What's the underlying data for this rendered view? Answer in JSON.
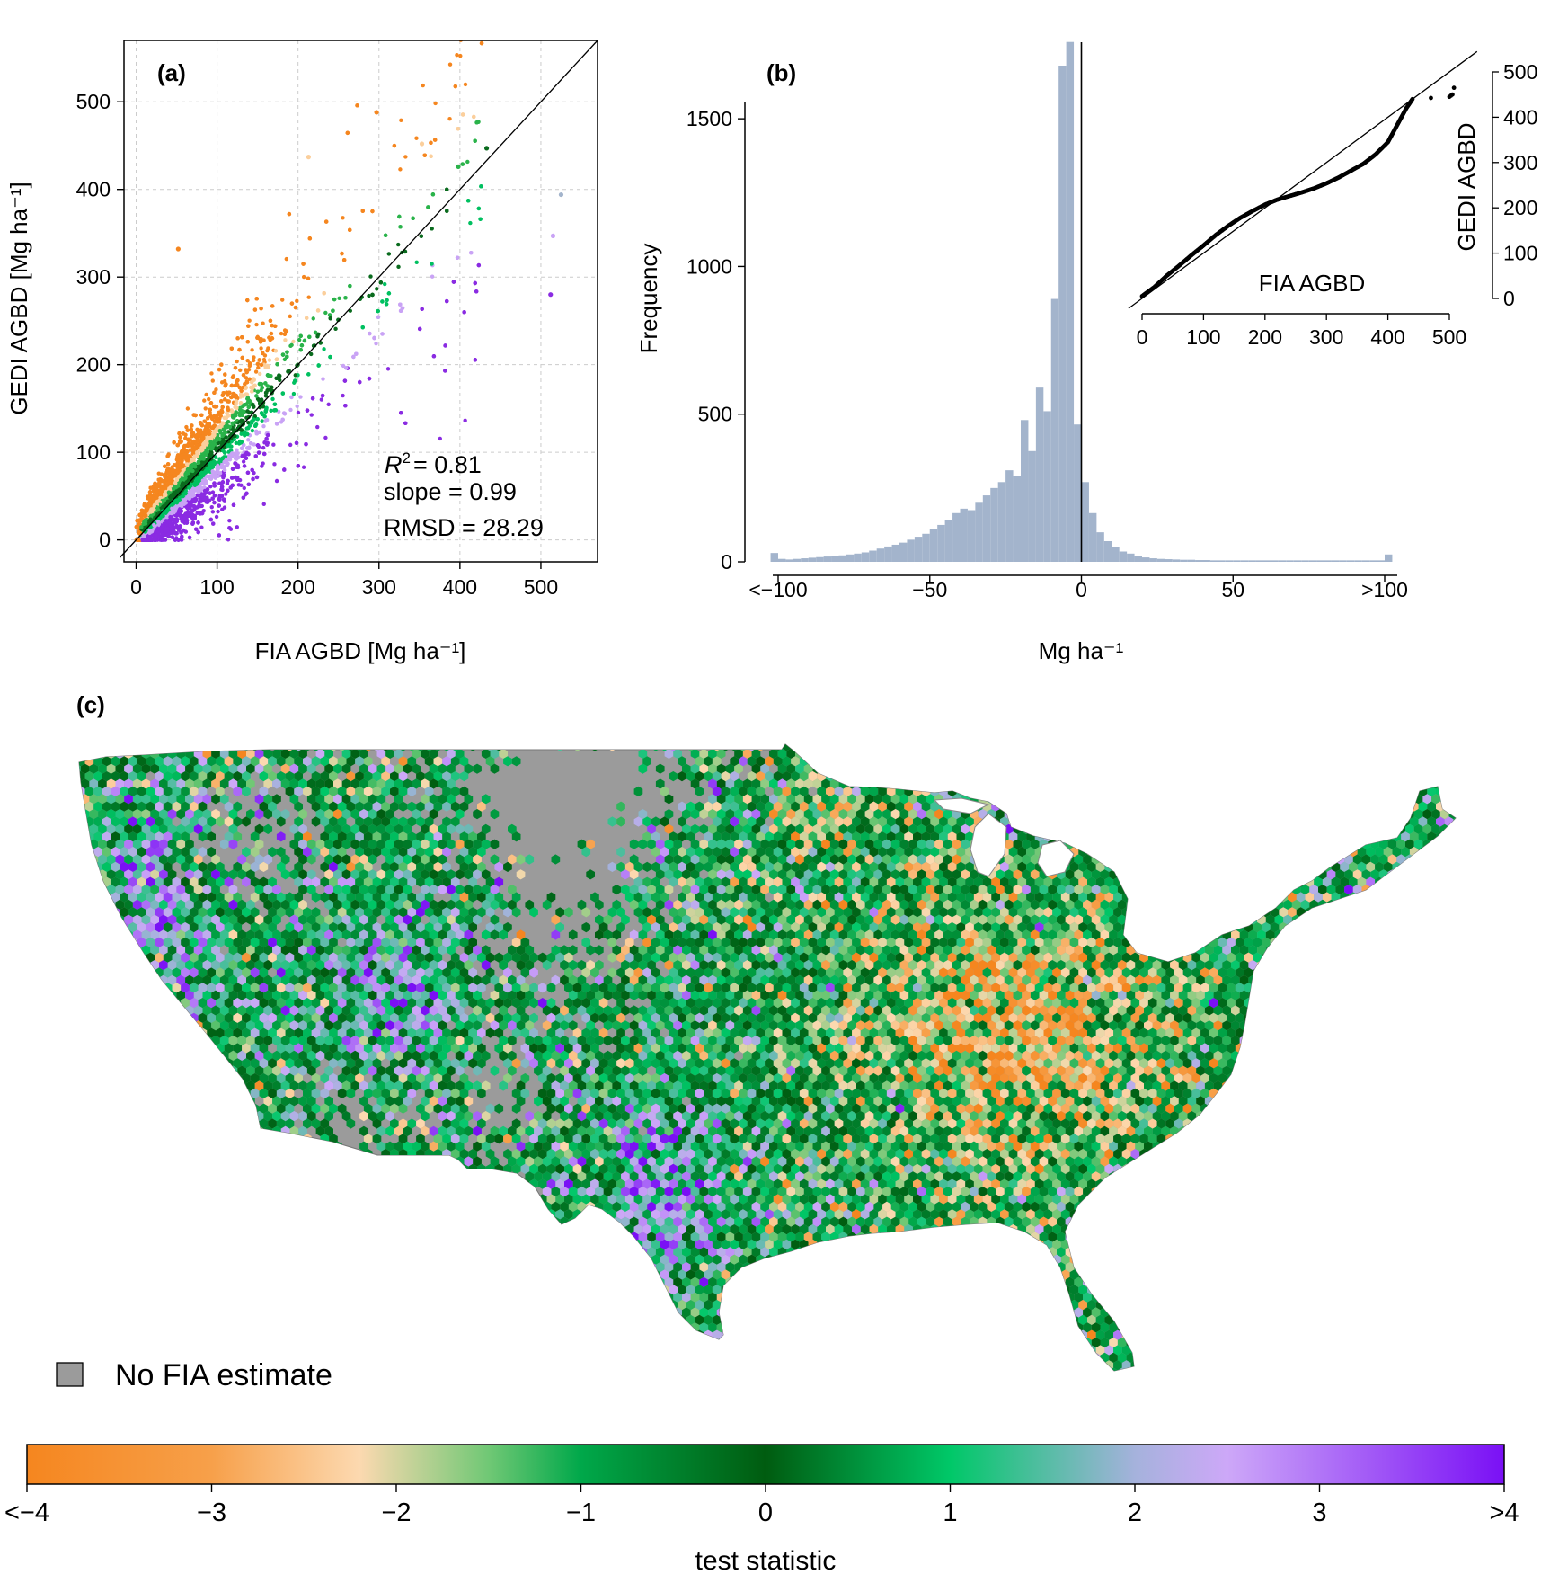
{
  "colors": {
    "orange": "#f5861f",
    "light_orange": "#fbcf9c",
    "green": "#2ab34a",
    "dark_green": "#0a6b1e",
    "bright_green": "#00c060",
    "lavender": "#c9a3f5",
    "purple": "#8a2be2",
    "hist_fill": "#a3b4cc",
    "no_data_gray": "#9b9b9b"
  },
  "chart_data": [
    {
      "type": "scatter",
      "panel_label": "(a)",
      "xlabel": "FIA AGBD [Mg ha⁻¹]",
      "ylabel": "GEDI AGBD [Mg ha⁻¹]",
      "xlim": [
        -15,
        570
      ],
      "ylim": [
        -25,
        570
      ],
      "xticks": [
        "0",
        "100",
        "200",
        "300",
        "400",
        "500"
      ],
      "yticks": [
        "0",
        "100",
        "200",
        "300",
        "400",
        "500"
      ],
      "grid": true,
      "reference_line": "1:1",
      "stats": {
        "r2_label": "R",
        "r2_sup": "2",
        "r2_value": "= 0.81",
        "slope": "slope = 0.99",
        "rmsd": "RMSD = 28.29"
      },
      "outlier_points": [
        {
          "x": 297,
          "y": 488,
          "class": "orange"
        },
        {
          "x": 213,
          "y": 437,
          "class": "light_orange"
        },
        {
          "x": 353,
          "y": 452,
          "class": "light_orange"
        },
        {
          "x": 52,
          "y": 332,
          "class": "orange"
        },
        {
          "x": 525,
          "y": 394,
          "class": "hist_fill"
        },
        {
          "x": 515,
          "y": 347,
          "class": "lavender"
        },
        {
          "x": 512,
          "y": 280,
          "class": "purple"
        },
        {
          "x": 433,
          "y": 447,
          "class": "dark_green"
        },
        {
          "x": 398,
          "y": 426,
          "class": "green"
        }
      ],
      "point_cloud": "test statistic classes relative to the 1:1 line: orange above, green near, purple below"
    },
    {
      "type": "bar",
      "panel_label": "(b)",
      "xlabel": "Mg ha⁻¹",
      "ylabel": "Frequency",
      "xticks": [
        "<−100",
        "−50",
        "0",
        "50",
        ">100"
      ],
      "yticks": [
        "0",
        "500",
        "1000",
        "1500"
      ],
      "ylim": [
        0,
        1750
      ],
      "bin_width": 2.5,
      "bin_start": -102.5,
      "counts": [
        30,
        10,
        8,
        10,
        12,
        14,
        16,
        18,
        20,
        22,
        25,
        28,
        32,
        38,
        45,
        52,
        58,
        65,
        75,
        85,
        95,
        110,
        125,
        140,
        165,
        180,
        175,
        200,
        225,
        250,
        270,
        310,
        290,
        480,
        375,
        590,
        510,
        890,
        1680,
        1760,
        465,
        270,
        165,
        100,
        70,
        50,
        35,
        28,
        20,
        15,
        12,
        10,
        9,
        8,
        7,
        7,
        6,
        6,
        5,
        5,
        5,
        5,
        5,
        5,
        5,
        5,
        5,
        5,
        5,
        5,
        5,
        5,
        5,
        5,
        5,
        5,
        5,
        5,
        5,
        5,
        5,
        25
      ],
      "zero_line": 0,
      "inset": {
        "type": "scatter",
        "xlabel": "FIA AGBD",
        "ylabel": "GEDI AGBD",
        "xticks": [
          "0",
          "100",
          "200",
          "300",
          "400",
          "500"
        ],
        "yticks": [
          "0",
          "100",
          "200",
          "300",
          "400",
          "500"
        ],
        "xlim": [
          -15,
          570
        ],
        "ylim": [
          -15,
          535
        ],
        "reference_line": "1:1",
        "qq_points": [
          [
            0,
            5
          ],
          [
            20,
            25
          ],
          [
            40,
            50
          ],
          [
            60,
            72
          ],
          [
            80,
            95
          ],
          [
            100,
            117
          ],
          [
            120,
            140
          ],
          [
            140,
            160
          ],
          [
            160,
            178
          ],
          [
            180,
            193
          ],
          [
            200,
            207
          ],
          [
            220,
            218
          ],
          [
            240,
            226
          ],
          [
            260,
            234
          ],
          [
            280,
            243
          ],
          [
            300,
            254
          ],
          [
            320,
            267
          ],
          [
            340,
            282
          ],
          [
            360,
            297
          ],
          [
            380,
            318
          ],
          [
            400,
            345
          ],
          [
            410,
            370
          ],
          [
            420,
            395
          ],
          [
            430,
            420
          ],
          [
            440,
            440
          ],
          [
            500,
            445
          ],
          [
            505,
            450
          ],
          [
            510,
            480
          ]
        ]
      }
    },
    {
      "type": "heatmap",
      "panel_label": "(c)",
      "legend_no_data": "No FIA estimate",
      "colorbar_label": "test statistic",
      "colorbar_ticks": [
        "<−4",
        "−3",
        "−2",
        "−1",
        "0",
        "1",
        "2",
        "3",
        ">4"
      ],
      "colorbar_range": [
        -4,
        4
      ],
      "colorbar_stops": [
        {
          "value": -4,
          "color": "#f5861f"
        },
        {
          "value": -3,
          "color": "#f7a04a"
        },
        {
          "value": -2.2,
          "color": "#fcd9b0"
        },
        {
          "value": -1.5,
          "color": "#70c875"
        },
        {
          "value": -1,
          "color": "#00a84a"
        },
        {
          "value": 0,
          "color": "#005c10"
        },
        {
          "value": 1,
          "color": "#00c868"
        },
        {
          "value": 2,
          "color": "#a5b2dc"
        },
        {
          "value": 2.5,
          "color": "#cda8f8"
        },
        {
          "value": 4,
          "color": "#7a10f5"
        }
      ]
    }
  ]
}
